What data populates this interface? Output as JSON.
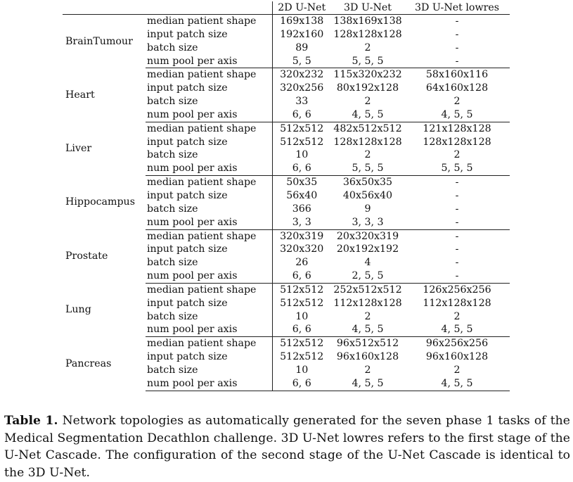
{
  "table": {
    "corner": "",
    "columns": [
      "2D U-Net",
      "3D U-Net",
      "3D U-Net lowres"
    ],
    "groups": [
      {
        "task": "BrainTumour",
        "rows": [
          {
            "param": "median patient shape",
            "v2d": "169x138",
            "v3d": "138x169x138",
            "vlow": "-"
          },
          {
            "param": "input patch size",
            "v2d": "192x160",
            "v3d": "128x128x128",
            "vlow": "-"
          },
          {
            "param": "batch size",
            "v2d": "89",
            "v3d": "2",
            "vlow": "-"
          },
          {
            "param": "num pool per axis",
            "v2d": "5, 5",
            "v3d": "5, 5, 5",
            "vlow": "-"
          }
        ]
      },
      {
        "task": "Heart",
        "rows": [
          {
            "param": "median patient shape",
            "v2d": "320x232",
            "v3d": "115x320x232",
            "vlow": "58x160x116"
          },
          {
            "param": "input patch size",
            "v2d": "320x256",
            "v3d": "80x192x128",
            "vlow": "64x160x128"
          },
          {
            "param": "batch size",
            "v2d": "33",
            "v3d": "2",
            "vlow": "2"
          },
          {
            "param": "num pool per axis",
            "v2d": "6, 6",
            "v3d": "4, 5, 5",
            "vlow": "4, 5, 5"
          }
        ]
      },
      {
        "task": "Liver",
        "rows": [
          {
            "param": "median patient shape",
            "v2d": "512x512",
            "v3d": "482x512x512",
            "vlow": "121x128x128"
          },
          {
            "param": "input patch size",
            "v2d": "512x512",
            "v3d": "128x128x128",
            "vlow": "128x128x128"
          },
          {
            "param": "batch size",
            "v2d": "10",
            "v3d": "2",
            "vlow": "2"
          },
          {
            "param": "num pool per axis",
            "v2d": "6, 6",
            "v3d": "5, 5, 5",
            "vlow": "5, 5, 5"
          }
        ]
      },
      {
        "task": "Hippocampus",
        "rows": [
          {
            "param": "median patient shape",
            "v2d": "50x35",
            "v3d": "36x50x35",
            "vlow": "-"
          },
          {
            "param": "input patch size",
            "v2d": "56x40",
            "v3d": "40x56x40",
            "vlow": "-"
          },
          {
            "param": "batch size",
            "v2d": "366",
            "v3d": "9",
            "vlow": "-"
          },
          {
            "param": "num pool per axis",
            "v2d": "3, 3",
            "v3d": "3, 3, 3",
            "vlow": "-"
          }
        ]
      },
      {
        "task": "Prostate",
        "rows": [
          {
            "param": "median patient shape",
            "v2d": "320x319",
            "v3d": "20x320x319",
            "vlow": "-"
          },
          {
            "param": "input patch size",
            "v2d": "320x320",
            "v3d": "20x192x192",
            "vlow": "-"
          },
          {
            "param": "batch size",
            "v2d": "26",
            "v3d": "4",
            "vlow": "-"
          },
          {
            "param": "num pool per axis",
            "v2d": "6, 6",
            "v3d": "2, 5, 5",
            "vlow": "-"
          }
        ]
      },
      {
        "task": "Lung",
        "rows": [
          {
            "param": "median patient shape",
            "v2d": "512x512",
            "v3d": "252x512x512",
            "vlow": "126x256x256"
          },
          {
            "param": "input patch size",
            "v2d": "512x512",
            "v3d": "112x128x128",
            "vlow": "112x128x128"
          },
          {
            "param": "batch size",
            "v2d": "10",
            "v3d": "2",
            "vlow": "2"
          },
          {
            "param": "num pool per axis",
            "v2d": "6, 6",
            "v3d": "4, 5, 5",
            "vlow": "4, 5, 5"
          }
        ]
      },
      {
        "task": "Pancreas",
        "rows": [
          {
            "param": "median patient shape",
            "v2d": "512x512",
            "v3d": "96x512x512",
            "vlow": "96x256x256"
          },
          {
            "param": "input patch size",
            "v2d": "512x512",
            "v3d": "96x160x128",
            "vlow": "96x160x128"
          },
          {
            "param": "batch size",
            "v2d": "10",
            "v3d": "2",
            "vlow": "2"
          },
          {
            "param": "num pool per axis",
            "v2d": "6, 6",
            "v3d": "4, 5, 5",
            "vlow": "4, 5, 5"
          }
        ]
      }
    ]
  },
  "caption": {
    "label": "Table 1.",
    "text": "Network topologies as automatically generated for the seven phase 1 tasks of the Medical Segmentation Decathlon challenge. 3D U-Net lowres refers to the first stage of the U-Net Cascade. The configuration of the second stage of the U-Net Cascade is identical to the 3D U-Net."
  }
}
